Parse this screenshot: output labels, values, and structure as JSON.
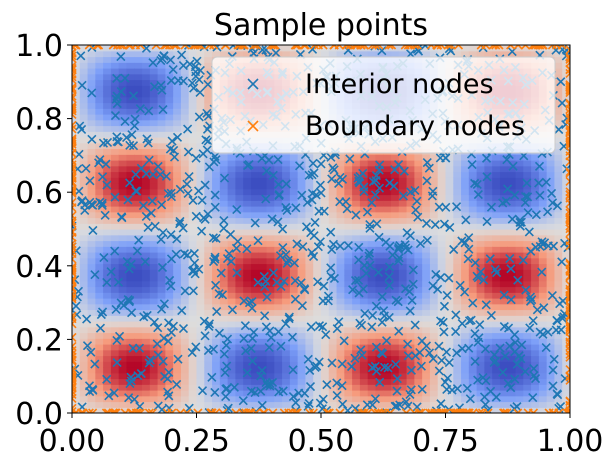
{
  "chart_data": {
    "type": "scatter",
    "title": "Sample points",
    "xlabel": "",
    "ylabel": "",
    "xlim": [
      0.0,
      1.0
    ],
    "ylim": [
      0.0,
      1.0
    ],
    "grid": false,
    "xticks": [
      0.0,
      0.25,
      0.5,
      0.75,
      1.0
    ],
    "xtick_labels": [
      "0.00",
      "0.25",
      "0.50",
      "0.75",
      "1.00"
    ],
    "yticks": [
      0.0,
      0.2,
      0.4,
      0.6,
      0.8,
      1.0
    ],
    "ytick_labels": [
      "0.0",
      "0.2",
      "0.4",
      "0.6",
      "0.8",
      "1.0"
    ],
    "background": {
      "type": "heatmap",
      "description_function": "sin(4*pi*x)*sin(4*pi*y)",
      "colormap": "coolwarm",
      "value_range": [
        -1,
        1
      ]
    },
    "legend": {
      "placement": "top-right",
      "entries": [
        "Interior nodes",
        "Boundary nodes"
      ]
    },
    "series": [
      {
        "name": "Interior nodes",
        "marker": "x",
        "color": "#1f77b4",
        "count_estimate": 1000,
        "distribution": "uniform random over (0,1)x(0,1)"
      },
      {
        "name": "Boundary nodes",
        "marker": "x",
        "color": "#ff7f0e",
        "count_estimate": 400,
        "distribution": "uniform random along the four edges of the unit square"
      }
    ]
  }
}
